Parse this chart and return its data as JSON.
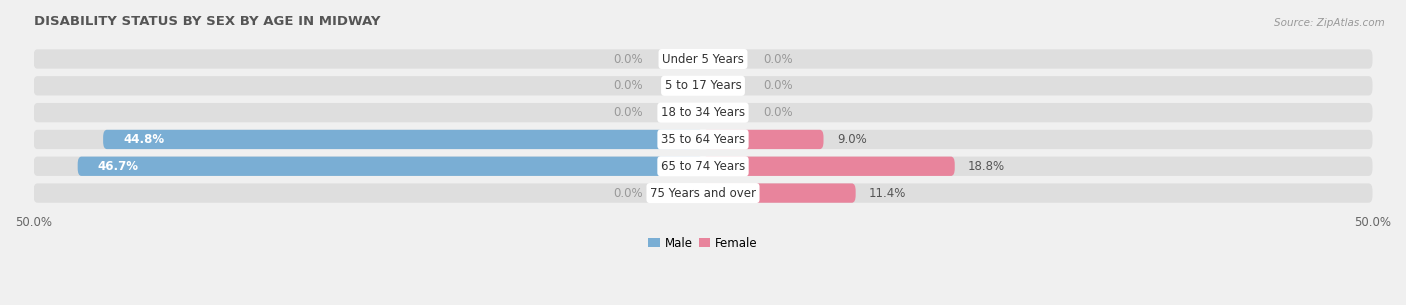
{
  "title": "DISABILITY STATUS BY SEX BY AGE IN MIDWAY",
  "source": "Source: ZipAtlas.com",
  "categories": [
    "Under 5 Years",
    "5 to 17 Years",
    "18 to 34 Years",
    "35 to 64 Years",
    "65 to 74 Years",
    "75 Years and over"
  ],
  "male_values": [
    0.0,
    0.0,
    0.0,
    44.8,
    46.7,
    0.0
  ],
  "female_values": [
    0.0,
    0.0,
    0.0,
    9.0,
    18.8,
    11.4
  ],
  "male_color": "#7aaed4",
  "female_color": "#e8849c",
  "male_label": "Male",
  "female_label": "Female",
  "xlim": 50.0,
  "bar_bg_color": "#dedede",
  "bar_height": 0.72,
  "title_fontsize": 9.5,
  "source_fontsize": 7.5,
  "label_fontsize": 8.5,
  "category_fontsize": 8.5,
  "tick_fontsize": 8.5,
  "fig_bg_color": "#f0f0f0",
  "row_bg_color": "#e8e8e8"
}
